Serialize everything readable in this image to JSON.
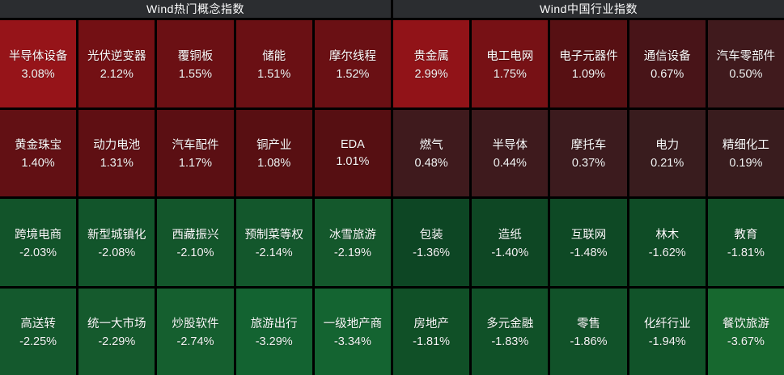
{
  "colors": {
    "page_bg": "#000000",
    "header_bg": "#2b2d30",
    "text": "#ffffff",
    "positive_strong": "#961419",
    "positive_weak": "#3a1c1e",
    "negative_weak": "#0d4624",
    "negative_strong": "#17682f"
  },
  "sections": [
    {
      "id": "concept",
      "title": "Wind热门概念指数",
      "cells": [
        {
          "name": "半导体设备",
          "change": "3.08%",
          "color": "#961419"
        },
        {
          "name": "光伏逆变器",
          "change": "2.12%",
          "color": "#731014"
        },
        {
          "name": "覆铜板",
          "change": "1.55%",
          "color": "#6b1014"
        },
        {
          "name": "储能",
          "change": "1.51%",
          "color": "#6a1014"
        },
        {
          "name": "摩尔线程",
          "change": "1.52%",
          "color": "#6a1014"
        },
        {
          "name": "黄金珠宝",
          "change": "1.40%",
          "color": "#621014"
        },
        {
          "name": "动力电池",
          "change": "1.31%",
          "color": "#5f0f13"
        },
        {
          "name": "汽车配件",
          "change": "1.17%",
          "color": "#5b0f13"
        },
        {
          "name": "铜产业",
          "change": "1.08%",
          "color": "#580f12"
        },
        {
          "name": "EDA",
          "change": "1.01%",
          "color": "#560f12"
        },
        {
          "name": "跨境电商",
          "change": "-2.03%",
          "color": "#12542a"
        },
        {
          "name": "新型城镇化",
          "change": "-2.08%",
          "color": "#12552b"
        },
        {
          "name": "西藏振兴",
          "change": "-2.10%",
          "color": "#13562b"
        },
        {
          "name": "预制菜等权",
          "change": "-2.14%",
          "color": "#13572c"
        },
        {
          "name": "冰雪旅游",
          "change": "-2.19%",
          "color": "#14582c"
        },
        {
          "name": "高送转",
          "change": "-2.25%",
          "color": "#14592d"
        },
        {
          "name": "统一大市场",
          "change": "-2.29%",
          "color": "#155a2d"
        },
        {
          "name": "炒股软件",
          "change": "-2.74%",
          "color": "#155f2f"
        },
        {
          "name": "旅游出行",
          "change": "-3.29%",
          "color": "#136331"
        },
        {
          "name": "一级地产商",
          "change": "-3.34%",
          "color": "#146431"
        }
      ]
    },
    {
      "id": "industry",
      "title": "Wind中国行业指数",
      "cells": [
        {
          "name": "贵金属",
          "change": "2.99%",
          "color": "#911318"
        },
        {
          "name": "电工电网",
          "change": "1.75%",
          "color": "#771115"
        },
        {
          "name": "电子元器件",
          "change": "1.09%",
          "color": "#571013"
        },
        {
          "name": "通信设备",
          "change": "0.67%",
          "color": "#481418"
        },
        {
          "name": "汽车零部件",
          "change": "0.50%",
          "color": "#401a1d"
        },
        {
          "name": "燃气",
          "change": "0.48%",
          "color": "#3f1a1d"
        },
        {
          "name": "半导体",
          "change": "0.44%",
          "color": "#3e1a1d"
        },
        {
          "name": "摩托车",
          "change": "0.37%",
          "color": "#3c1b1e"
        },
        {
          "name": "电力",
          "change": "0.21%",
          "color": "#391c1e"
        },
        {
          "name": "精细化工",
          "change": "0.19%",
          "color": "#391c1e"
        },
        {
          "name": "包装",
          "change": "-1.36%",
          "color": "#0d4624"
        },
        {
          "name": "造纸",
          "change": "-1.40%",
          "color": "#0e4724"
        },
        {
          "name": "互联网",
          "change": "-1.48%",
          "color": "#0e4925"
        },
        {
          "name": "林木",
          "change": "-1.62%",
          "color": "#0f4c26"
        },
        {
          "name": "教育",
          "change": "-1.81%",
          "color": "#105027"
        },
        {
          "name": "房地产",
          "change": "-1.81%",
          "color": "#105027"
        },
        {
          "name": "多元金融",
          "change": "-1.83%",
          "color": "#105128"
        },
        {
          "name": "零售",
          "change": "-1.86%",
          "color": "#115229"
        },
        {
          "name": "化纤行业",
          "change": "-1.94%",
          "color": "#115329"
        },
        {
          "name": "餐饮旅游",
          "change": "-3.67%",
          "color": "#17682f"
        }
      ]
    }
  ],
  "chart_data": [
    {
      "type": "heatmap",
      "title": "Wind热门概念指数",
      "rows": 4,
      "cols": 5,
      "legend_position": "none",
      "labels": [
        "半导体设备",
        "光伏逆变器",
        "覆铜板",
        "储能",
        "摩尔线程",
        "黄金珠宝",
        "动力电池",
        "汽车配件",
        "铜产业",
        "EDA",
        "跨境电商",
        "新型城镇化",
        "西藏振兴",
        "预制菜等权",
        "冰雪旅游",
        "高送转",
        "统一大市场",
        "炒股软件",
        "旅游出行",
        "一级地产商"
      ],
      "values": [
        3.08,
        2.12,
        1.55,
        1.51,
        1.52,
        1.4,
        1.31,
        1.17,
        1.08,
        1.01,
        -2.03,
        -2.08,
        -2.1,
        -2.14,
        -2.19,
        -2.25,
        -2.29,
        -2.74,
        -3.29,
        -3.34
      ],
      "unit": "%",
      "color_scale": "red = positive change, green = negative change; intensity increases with magnitude"
    },
    {
      "type": "heatmap",
      "title": "Wind中国行业指数",
      "rows": 4,
      "cols": 5,
      "legend_position": "none",
      "labels": [
        "贵金属",
        "电工电网",
        "电子元器件",
        "通信设备",
        "汽车零部件",
        "燃气",
        "半导体",
        "摩托车",
        "电力",
        "精细化工",
        "包装",
        "造纸",
        "互联网",
        "林木",
        "教育",
        "房地产",
        "多元金融",
        "零售",
        "化纤行业",
        "餐饮旅游"
      ],
      "values": [
        2.99,
        1.75,
        1.09,
        0.67,
        0.5,
        0.48,
        0.44,
        0.37,
        0.21,
        0.19,
        -1.36,
        -1.4,
        -1.48,
        -1.62,
        -1.81,
        -1.81,
        -1.83,
        -1.86,
        -1.94,
        -3.67
      ],
      "unit": "%",
      "color_scale": "red = positive change, green = negative change; intensity increases with magnitude"
    }
  ]
}
